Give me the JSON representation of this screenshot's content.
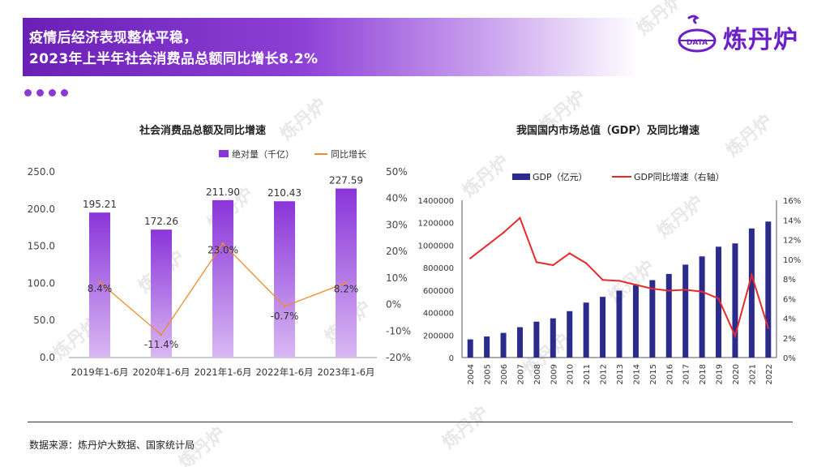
{
  "header": {
    "title_line1": "疫情后经济表现整体平稳，",
    "title_line2": "2023年上半年社会消费品总额同比增长8.2%"
  },
  "logo": {
    "badge": "DATA",
    "name": "炼丹炉"
  },
  "watermark": "炼丹炉",
  "footer": {
    "source": "数据来源：炼丹炉大数据、国家统计局"
  },
  "colors": {
    "purple": "#8a35d9",
    "orange": "#f28a2e",
    "navy": "#2b2b8c",
    "red": "#e52b2b"
  },
  "chart_data": [
    {
      "type": "bar+line",
      "title": "社会消费品总额及同比增速",
      "legend": [
        "绝对量（千亿）",
        "同比增长"
      ],
      "categories": [
        "2019年1-6月",
        "2020年1-6月",
        "2021年1-6月",
        "2022年1-6月",
        "2023年1-6月"
      ],
      "series": [
        {
          "name": "绝对量（千亿）",
          "axis": "left",
          "values": [
            195.21,
            172.26,
            211.9,
            210.43,
            227.59
          ],
          "labels": [
            "195.21",
            "172.26",
            "211.90",
            "210.43",
            "227.59"
          ]
        },
        {
          "name": "同比增长",
          "axis": "right",
          "values": [
            8.4,
            -11.4,
            23.0,
            -0.7,
            8.2
          ],
          "labels": [
            "8.4%",
            "-11.4%",
            "23.0%",
            "-0.7%",
            "8.2%"
          ]
        }
      ],
      "ylim_left": [
        0,
        250
      ],
      "yticks_left": [
        "0.0",
        "50.0",
        "100.0",
        "150.0",
        "200.0",
        "250.0"
      ],
      "ylim_right": [
        -20,
        50
      ],
      "yticks_right": [
        "-20%",
        "-10%",
        "0%",
        "10%",
        "20%",
        "30%",
        "40%",
        "50%"
      ]
    },
    {
      "type": "bar+line",
      "title": "我国国内市场总值（GDP）及同比增速",
      "legend": [
        "GDP（亿元）",
        "GDP同比增速（右轴）"
      ],
      "categories": [
        "2004",
        "2005",
        "2006",
        "2007",
        "2008",
        "2009",
        "2010",
        "2011",
        "2012",
        "2013",
        "2014",
        "2015",
        "2016",
        "2017",
        "2018",
        "2019",
        "2020",
        "2021",
        "2022"
      ],
      "series": [
        {
          "name": "GDP（亿元）",
          "axis": "left",
          "values": [
            161840,
            187319,
            219438,
            270232,
            319516,
            349081,
            413030,
            489301,
            540367,
            595244,
            643974,
            689052,
            744127,
            827122,
            900309,
            986515,
            1015986,
            1149237,
            1210207
          ]
        },
        {
          "name": "GDP同比增速（右轴）",
          "axis": "right",
          "values": [
            10.1,
            11.4,
            12.7,
            14.2,
            9.7,
            9.4,
            10.6,
            9.6,
            7.9,
            7.8,
            7.4,
            7.0,
            6.8,
            6.9,
            6.7,
            6.0,
            2.2,
            8.4,
            3.0
          ]
        }
      ],
      "ylim_left": [
        0,
        1400000
      ],
      "yticks_left": [
        "0",
        "200000",
        "400000",
        "600000",
        "800000",
        "1000000",
        "1200000",
        "1400000"
      ],
      "ylim_right": [
        0,
        16
      ],
      "yticks_right": [
        "0%",
        "2%",
        "4%",
        "6%",
        "8%",
        "10%",
        "12%",
        "14%",
        "16%"
      ]
    }
  ]
}
